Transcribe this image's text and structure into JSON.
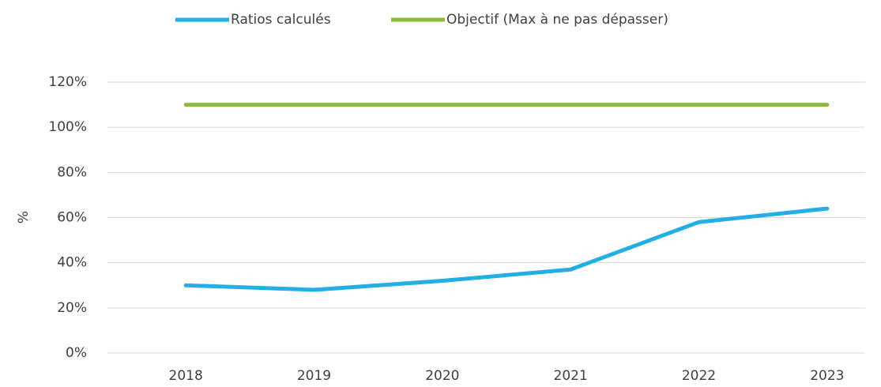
{
  "chart_data": {
    "type": "line",
    "categories": [
      "2018",
      "2019",
      "2020",
      "2021",
      "2022",
      "2023"
    ],
    "series": [
      {
        "name": "Ratios calculés",
        "color": "#23aee5",
        "values": [
          30,
          28,
          32,
          37,
          58,
          64
        ]
      },
      {
        "name": "Objectif (Max à ne pas dépasser)",
        "color": "#8fba3c",
        "values": [
          110,
          110,
          110,
          110,
          110,
          110
        ]
      }
    ],
    "ylabel": "%",
    "ylim": [
      0,
      120
    ],
    "yticks": [
      {
        "value": 0,
        "label": "0%"
      },
      {
        "value": 20,
        "label": "20%"
      },
      {
        "value": 40,
        "label": "40%"
      },
      {
        "value": 60,
        "label": "60%"
      },
      {
        "value": 80,
        "label": "80%"
      },
      {
        "value": 100,
        "label": "100%"
      },
      {
        "value": 120,
        "label": "120%"
      }
    ],
    "grid": true,
    "legend": "top"
  }
}
